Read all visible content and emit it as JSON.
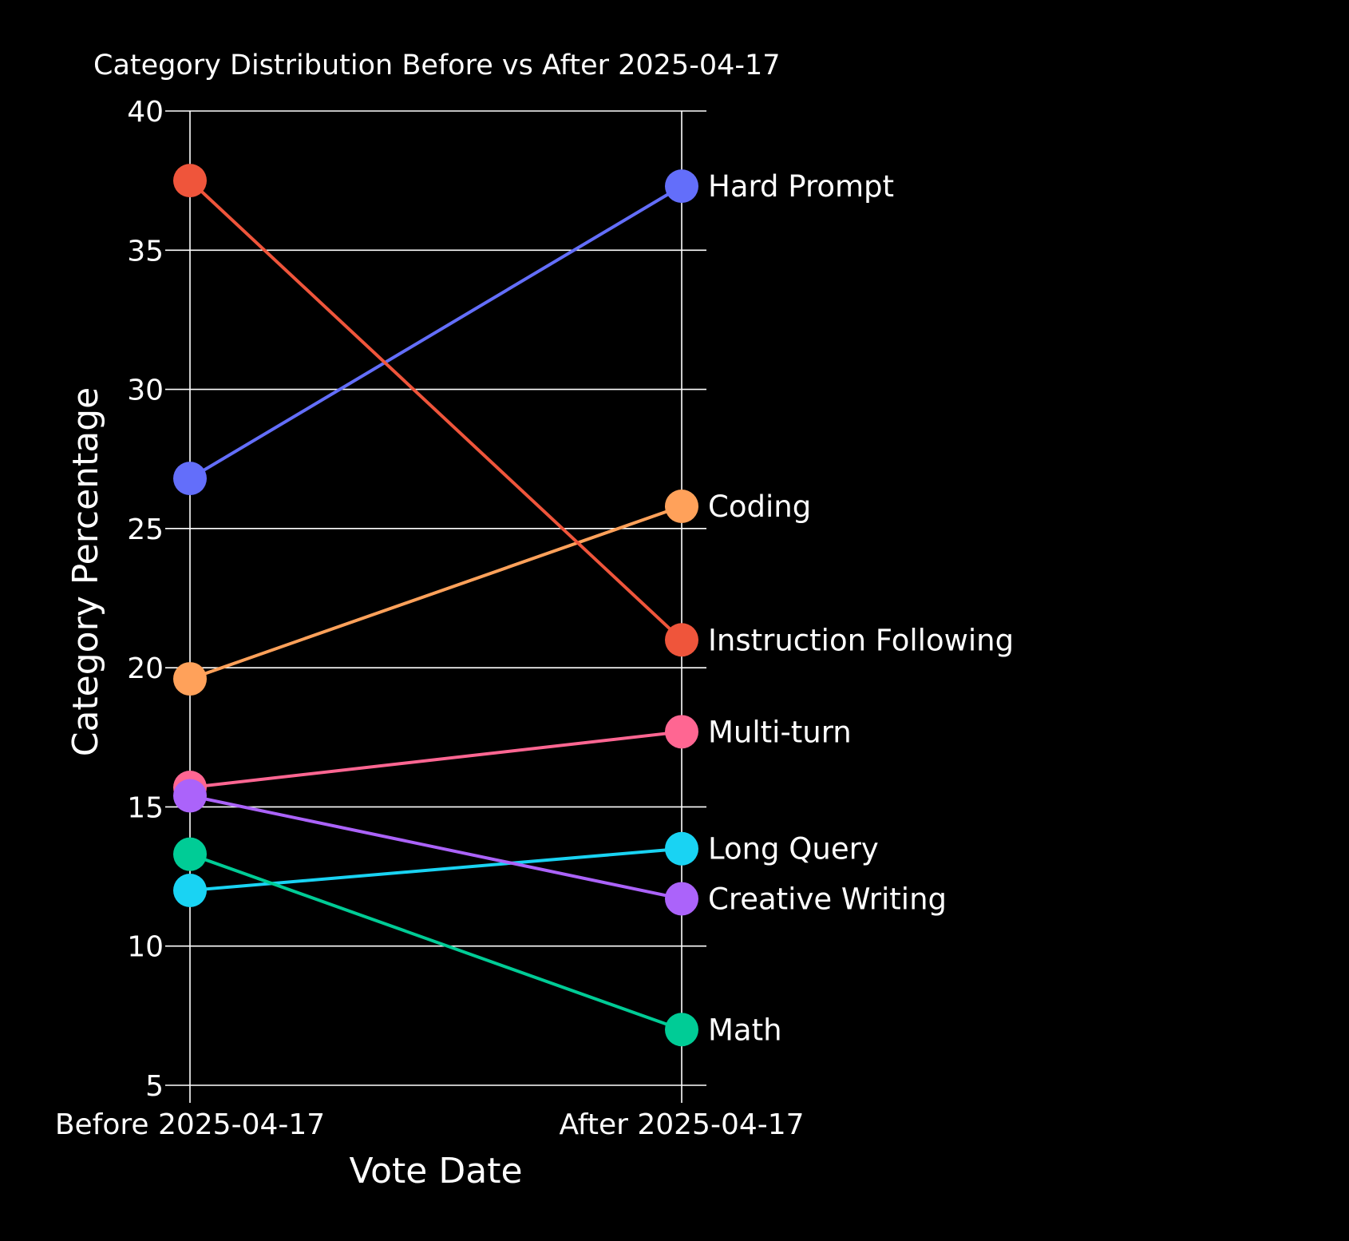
{
  "chart_data": {
    "type": "line",
    "title": "Category Distribution Before vs After 2025-04-17",
    "xlabel": "Vote Date",
    "ylabel": "Category Percentage",
    "categories": [
      "Before 2025-04-17",
      "After 2025-04-17"
    ],
    "ylim": [
      5,
      40
    ],
    "yticks": [
      5,
      10,
      15,
      20,
      25,
      30,
      35,
      40
    ],
    "grid": true,
    "legend": "direct labels at right end of each line",
    "series": [
      {
        "name": "Hard Prompt",
        "values": [
          26.8,
          37.3
        ],
        "color": "#636efa"
      },
      {
        "name": "Coding",
        "values": [
          19.6,
          25.8
        ],
        "color": "#ffa15a"
      },
      {
        "name": "Instruction Following",
        "values": [
          37.5,
          21.0
        ],
        "color": "#ef553b"
      },
      {
        "name": "Multi-turn",
        "values": [
          15.7,
          17.7
        ],
        "color": "#ff6692"
      },
      {
        "name": "Long Query",
        "values": [
          12.0,
          13.5
        ],
        "color": "#19d3f3"
      },
      {
        "name": "Creative Writing",
        "values": [
          15.4,
          11.7
        ],
        "color": "#ab63fa"
      },
      {
        "name": "Math",
        "values": [
          13.3,
          7.0
        ],
        "color": "#00cc96"
      }
    ]
  }
}
